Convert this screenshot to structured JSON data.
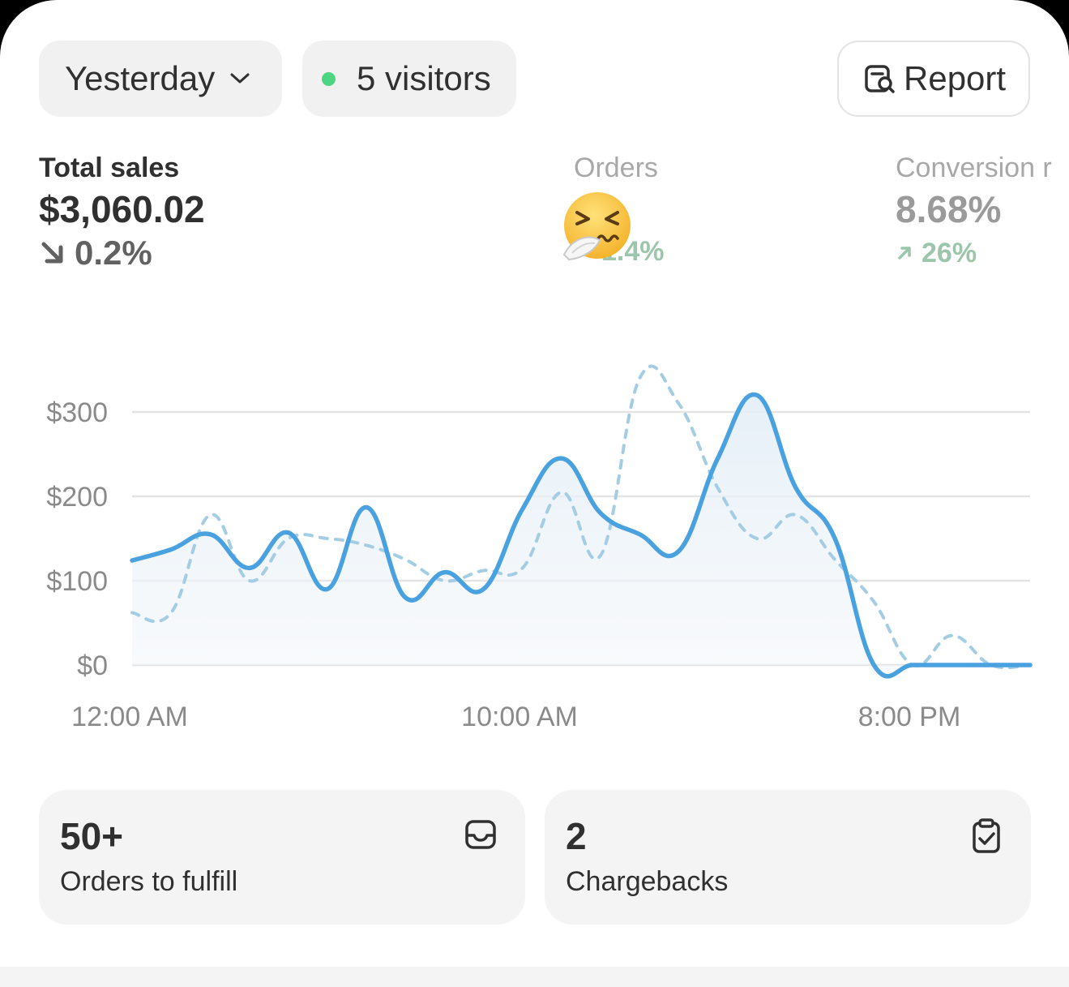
{
  "filters": {
    "date_label": "Yesterday",
    "visitors_label": "5 visitors",
    "report_label": "Report"
  },
  "metrics": {
    "total_sales": {
      "label": "Total sales",
      "value": "$3,060.02",
      "delta": "0.2%"
    },
    "orders": {
      "label": "Orders",
      "delta": "1.4%"
    },
    "conversion": {
      "label": "Conversion r",
      "value": "8.68%",
      "delta": "26%"
    }
  },
  "cards": [
    {
      "value": "50+",
      "label": "Orders to fulfill",
      "icon": "inbox-icon"
    },
    {
      "value": "2",
      "label": "Chargebacks",
      "icon": "clipboard-check-icon"
    }
  ],
  "colors": {
    "primary_line": "#4aa1e0",
    "comparison_line": "#a4cde4",
    "visitors_dot": "#4ed581",
    "positive_delta": "#9bc6ab"
  },
  "chart_data": {
    "type": "line",
    "x_ticks": [
      "12:00 AM",
      "10:00 AM",
      "8:00 PM"
    ],
    "y_ticks": [
      "$0",
      "$100",
      "$200",
      "$300"
    ],
    "ylim": [
      0,
      340
    ],
    "grid": true,
    "x": [
      "12:00 AM",
      "1:00 AM",
      "2:00 AM",
      "3:00 AM",
      "4:00 AM",
      "5:00 AM",
      "6:00 AM",
      "7:00 AM",
      "8:00 AM",
      "9:00 AM",
      "10:00 AM",
      "11:00 AM",
      "12:00 PM",
      "1:00 PM",
      "2:00 PM",
      "3:00 PM",
      "4:00 PM",
      "5:00 PM",
      "6:00 PM",
      "7:00 PM",
      "8:00 PM",
      "9:00 PM",
      "10:00 PM",
      "11:00 PM"
    ],
    "series": [
      {
        "style": "solid",
        "values": [
          124,
          137,
          155,
          115,
          157,
          90,
          187,
          80,
          110,
          90,
          185,
          245,
          180,
          155,
          135,
          245,
          320,
          210,
          150,
          0,
          0,
          0,
          0,
          0
        ]
      },
      {
        "style": "dashed",
        "values": [
          62,
          62,
          178,
          100,
          150,
          150,
          142,
          125,
          100,
          112,
          115,
          205,
          130,
          340,
          310,
          210,
          150,
          178,
          125,
          75,
          0,
          35,
          0,
          0
        ]
      }
    ]
  }
}
